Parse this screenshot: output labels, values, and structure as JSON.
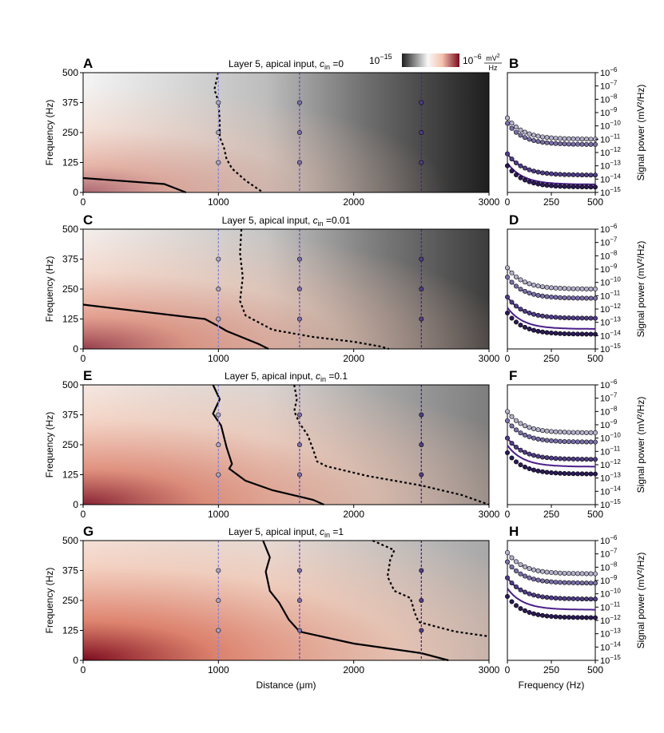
{
  "colors": {
    "gray_dark": "#1e1e1e",
    "white": "#f8f8f8",
    "red_light": "#f4c3ad",
    "red_dark": "#7a0a1e",
    "contour": "#000000",
    "probe_lines": [
      "#8884d6",
      "#6a4bc0",
      "#4a2490"
    ],
    "marker_fills": [
      "#b4b2cc",
      "#7a6fa8",
      "#4f3d86",
      "#2a1a55"
    ],
    "fit_line": "#4b1f8a"
  },
  "colorbar": {
    "min_label": "10",
    "min_exp": "−15",
    "max_label": "10",
    "max_exp": "−6",
    "unit_num": "mV",
    "unit_num_exp": "2",
    "unit_den": "Hz"
  },
  "chart_data": [
    {
      "type": "heatmap",
      "letter": "A",
      "title": "Layer 5, apical input, ",
      "title_c": "c",
      "title_sub": "in",
      "title_val": " =0",
      "xlim": [
        0,
        3000
      ],
      "ylim": [
        0,
        500
      ],
      "xticks": [
        "0",
        "1000",
        "2000",
        "3000"
      ],
      "yticks": [
        "0",
        "125",
        "250",
        "375",
        "500"
      ],
      "ylabel": "Frequency (Hz)",
      "xlabel": "",
      "probe_distances": [
        1000,
        1600,
        2500
      ],
      "probe_freqs": [
        125,
        250,
        375
      ],
      "solid_contour": [
        [
          0,
          60
        ],
        [
          600,
          35
        ],
        [
          760,
          0
        ]
      ],
      "dashed_contour": [
        [
          1000,
          500
        ],
        [
          970,
          430
        ],
        [
          1000,
          380
        ],
        [
          1010,
          300
        ],
        [
          1010,
          230
        ],
        [
          1040,
          190
        ],
        [
          1060,
          140
        ],
        [
          1100,
          100
        ],
        [
          1200,
          50
        ],
        [
          1330,
          0
        ]
      ],
      "red_strength": 0.5,
      "dark_strength": 1.0
    },
    {
      "type": "heatmap",
      "letter": "C",
      "title": "Layer 5, apical input, ",
      "title_c": "c",
      "title_sub": "in",
      "title_val": " =0.01",
      "xlim": [
        0,
        3000
      ],
      "ylim": [
        0,
        500
      ],
      "xticks": [
        "0",
        "1000",
        "2000",
        "3000"
      ],
      "yticks": [
        "0",
        "125",
        "250",
        "375",
        "500"
      ],
      "ylabel": "Frequency (Hz)",
      "xlabel": "",
      "probe_distances": [
        1000,
        1600,
        2500
      ],
      "probe_freqs": [
        125,
        250,
        375
      ],
      "solid_contour": [
        [
          0,
          185
        ],
        [
          900,
          125
        ],
        [
          1000,
          95
        ],
        [
          1060,
          75
        ],
        [
          1300,
          20
        ],
        [
          1370,
          0
        ]
      ],
      "dashed_contour": [
        [
          1170,
          500
        ],
        [
          1160,
          400
        ],
        [
          1180,
          300
        ],
        [
          1160,
          200
        ],
        [
          1200,
          140
        ],
        [
          1400,
          80
        ],
        [
          1700,
          50
        ],
        [
          2000,
          30
        ],
        [
          2200,
          10
        ],
        [
          2260,
          0
        ]
      ],
      "red_strength": 0.8,
      "dark_strength": 0.9
    },
    {
      "type": "heatmap",
      "letter": "E",
      "title": "Layer 5, apical input, ",
      "title_c": "c",
      "title_sub": "in",
      "title_val": " =0.1",
      "xlim": [
        0,
        3000
      ],
      "ylim": [
        0,
        500
      ],
      "xticks": [
        "0",
        "1000",
        "2000",
        "3000"
      ],
      "yticks": [
        "0",
        "125",
        "250",
        "375",
        "500"
      ],
      "ylabel": "Frequency (Hz)",
      "xlabel": "",
      "probe_distances": [
        1000,
        1600,
        2500
      ],
      "probe_freqs": [
        125,
        250,
        375
      ],
      "solid_contour": [
        [
          960,
          500
        ],
        [
          1010,
          440
        ],
        [
          960,
          380
        ],
        [
          1020,
          330
        ],
        [
          1060,
          240
        ],
        [
          1100,
          170
        ],
        [
          1080,
          150
        ],
        [
          1200,
          100
        ],
        [
          1400,
          60
        ],
        [
          1700,
          20
        ],
        [
          1780,
          0
        ]
      ],
      "dashed_contour": [
        [
          1560,
          500
        ],
        [
          1580,
          440
        ],
        [
          1560,
          390
        ],
        [
          1600,
          340
        ],
        [
          1660,
          290
        ],
        [
          1700,
          230
        ],
        [
          1730,
          180
        ],
        [
          1800,
          160
        ],
        [
          2100,
          120
        ],
        [
          2500,
          80
        ],
        [
          2800,
          40
        ],
        [
          3000,
          0
        ]
      ],
      "red_strength": 1.0,
      "dark_strength": 0.65
    },
    {
      "type": "heatmap",
      "letter": "G",
      "title": "Layer 5, apical input, ",
      "title_c": "c",
      "title_sub": "in",
      "title_val": " =1",
      "xlim": [
        0,
        3000
      ],
      "ylim": [
        0,
        500
      ],
      "xticks": [
        "0",
        "1000",
        "2000",
        "3000"
      ],
      "yticks": [
        "0",
        "125",
        "250",
        "375",
        "500"
      ],
      "ylabel": "Frequency (Hz)",
      "xlabel": "Distance (μm)",
      "probe_distances": [
        1000,
        1600,
        2500
      ],
      "probe_freqs": [
        125,
        250,
        375
      ],
      "solid_contour": [
        [
          1330,
          500
        ],
        [
          1380,
          430
        ],
        [
          1350,
          370
        ],
        [
          1380,
          290
        ],
        [
          1450,
          240
        ],
        [
          1520,
          170
        ],
        [
          1600,
          120
        ],
        [
          2000,
          70
        ],
        [
          2500,
          30
        ],
        [
          2700,
          0
        ]
      ],
      "dashed_contour": [
        [
          2140,
          500
        ],
        [
          2300,
          460
        ],
        [
          2270,
          420
        ],
        [
          2250,
          350
        ],
        [
          2300,
          290
        ],
        [
          2420,
          260
        ],
        [
          2450,
          200
        ],
        [
          2480,
          160
        ],
        [
          2750,
          120
        ],
        [
          3000,
          100
        ]
      ],
      "red_strength": 1.2,
      "dark_strength": 0.45
    }
  ],
  "spectra": [
    {
      "letter": "B",
      "xlim": [
        0,
        500
      ],
      "xticks": [
        "0",
        "250",
        "500"
      ],
      "xlabel": "",
      "ylabel": "Signal power (mV²/Hz)",
      "ylim_exp": [
        -15,
        -6
      ],
      "ytick_exps": [
        "−6",
        "−7",
        "−8",
        "−9",
        "−10",
        "−11",
        "−12",
        "−13",
        "−14",
        "−15"
      ],
      "series_levels": [
        -11.0,
        -11.4,
        -13.7,
        -14.6
      ],
      "fit_offset": 0.2
    },
    {
      "letter": "D",
      "xlim": [
        0,
        500
      ],
      "xticks": [
        "0",
        "250",
        "500"
      ],
      "xlabel": "",
      "ylabel": "Signal power (mV²/Hz)",
      "ylim_exp": [
        -15,
        -6
      ],
      "ytick_exps": [
        "−6",
        "−7",
        "−8",
        "−9",
        "−10",
        "−11",
        "−12",
        "−13",
        "−14",
        "−15"
      ],
      "series_levels": [
        -10.5,
        -11.2,
        -12.7,
        -13.9
      ],
      "fit_offset": 0.4
    },
    {
      "letter": "F",
      "xlim": [
        0,
        500
      ],
      "xticks": [
        "0",
        "250",
        "500"
      ],
      "xlabel": "",
      "ylabel": "Signal power (mV²/Hz)",
      "ylim_exp": [
        -15,
        -6
      ],
      "ytick_exps": [
        "−6",
        "−7",
        "−8",
        "−9",
        "−10",
        "−11",
        "−12",
        "−13",
        "−14",
        "−15"
      ],
      "series_levels": [
        -9.6,
        -10.3,
        -11.6,
        -12.7
      ],
      "fit_offset": 0.55
    },
    {
      "letter": "H",
      "xlim": [
        0,
        500
      ],
      "xticks": [
        "0",
        "250",
        "500"
      ],
      "xlabel": "Frequency (Hz)",
      "ylabel": "Signal power (mV²/Hz)",
      "ylim_exp": [
        -15,
        -6
      ],
      "ytick_exps": [
        "−6",
        "−7",
        "−8",
        "−9",
        "−10",
        "−11",
        "−12",
        "−13",
        "−14",
        "−15"
      ],
      "series_levels": [
        -8.5,
        -9.2,
        -10.4,
        -11.8
      ],
      "fit_offset": 0.6
    }
  ]
}
